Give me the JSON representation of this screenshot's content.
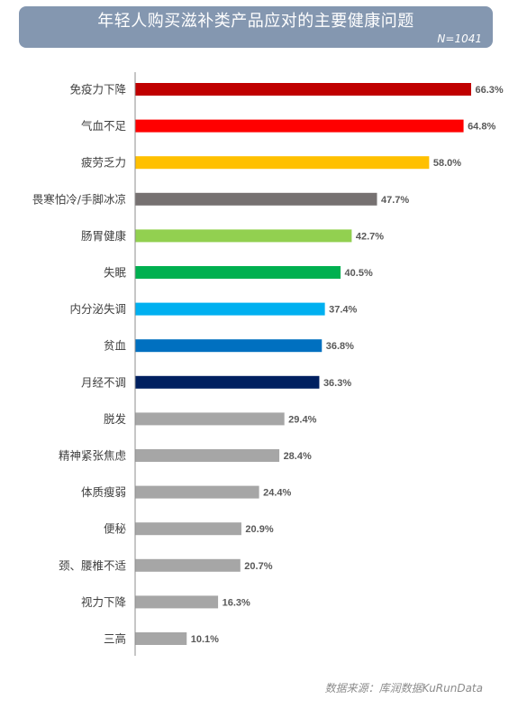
{
  "header": {
    "title": "年轻人购买滋补类产品应对的主要健康问题",
    "sample": "N=1041",
    "background": "#8497b0"
  },
  "chart_data": {
    "type": "bar",
    "orientation": "horizontal",
    "categories": [
      "免疫力下降",
      "气血不足",
      "疲劳乏力",
      "畏寒怕冷/手脚冰凉",
      "肠胃健康",
      "失眠",
      "内分泌失调",
      "贫血",
      "月经不调",
      "脱发",
      "精神紧张焦虑",
      "体质瘦弱",
      "便秘",
      "颈、腰椎不适",
      "视力下降",
      "三高"
    ],
    "values": [
      66.3,
      64.8,
      58.0,
      47.7,
      42.7,
      40.5,
      37.4,
      36.8,
      36.3,
      29.4,
      28.4,
      24.4,
      20.9,
      20.7,
      16.3,
      10.1
    ],
    "value_labels": [
      "66.3%",
      "64.8%",
      "58.0%",
      "47.7%",
      "42.7%",
      "40.5%",
      "37.4%",
      "36.8%",
      "36.3%",
      "29.4%",
      "28.4%",
      "24.4%",
      "20.9%",
      "20.7%",
      "16.3%",
      "10.1%"
    ],
    "colors": [
      "#c00000",
      "#ff0000",
      "#ffc000",
      "#767171",
      "#92d050",
      "#00b050",
      "#00b0f0",
      "#0070c0",
      "#002060",
      "#a6a6a6",
      "#a6a6a6",
      "#a6a6a6",
      "#a6a6a6",
      "#a6a6a6",
      "#a6a6a6",
      "#a6a6a6"
    ],
    "xlim": [
      0,
      70
    ],
    "grid": false,
    "data_labels": true
  },
  "footer": {
    "source": "数据来源：库润数据KuRunData"
  }
}
